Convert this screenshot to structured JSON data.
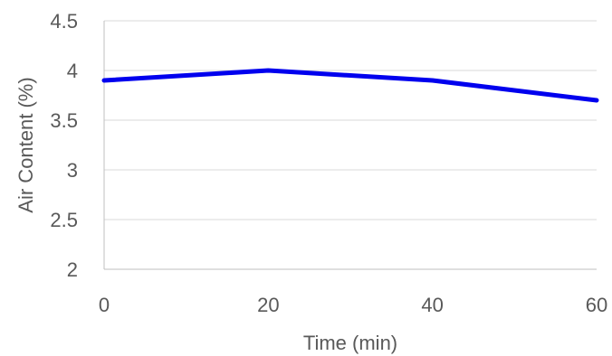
{
  "chart_data": {
    "type": "line",
    "title": "",
    "xlabel": "Time (min)",
    "ylabel": "Air Content (%)",
    "xlim": [
      0,
      60
    ],
    "ylim": [
      2,
      4.5
    ],
    "x_ticks": [
      "0",
      "20",
      "40",
      "60"
    ],
    "y_ticks": [
      "2",
      "2.5",
      "3",
      "3.5",
      "4",
      "4.5"
    ],
    "grid": true,
    "legend": "none",
    "series": [
      {
        "color": "#0000ee",
        "x": [
          0,
          20,
          40,
          60
        ],
        "values": [
          3.9,
          4.0,
          3.9,
          3.7
        ]
      }
    ]
  }
}
